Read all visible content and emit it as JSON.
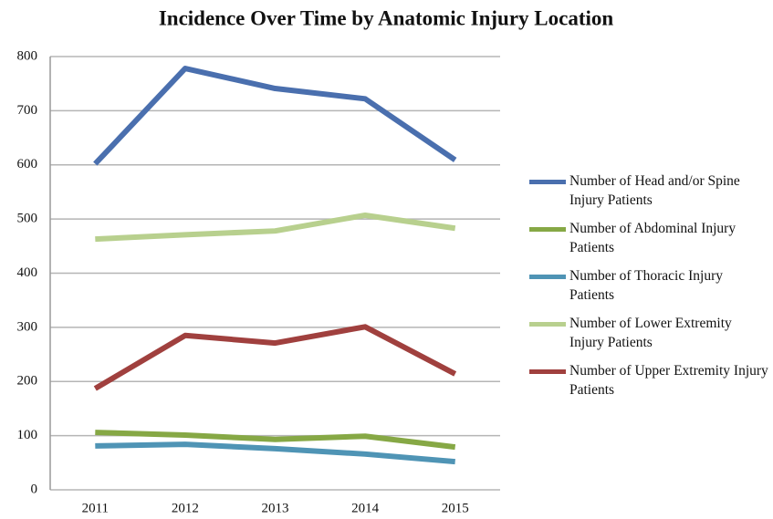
{
  "chart_data": {
    "type": "line",
    "title": "Incidence Over Time by Anatomic Injury Location",
    "categories": [
      "2011",
      "2012",
      "2013",
      "2014",
      "2015"
    ],
    "series": [
      {
        "name": "Number of Head and/or Spine Injury Patients",
        "color": "#4a6fae",
        "values": [
          602,
          778,
          741,
          722,
          609
        ]
      },
      {
        "name": "Number of Abdominal Injury Patients",
        "color": "#86a845",
        "values": [
          106,
          101,
          93,
          99,
          79
        ]
      },
      {
        "name": "Number of Thoracic Injury Patients",
        "color": "#4f94b5",
        "values": [
          81,
          84,
          76,
          66,
          52
        ]
      },
      {
        "name": "Number of Lower Extremity Injury Patients",
        "color": "#b8d08e",
        "values": [
          463,
          471,
          478,
          507,
          483
        ]
      },
      {
        "name": "Number of Upper Extremity Injury Patients",
        "color": "#a0403e",
        "values": [
          187,
          285,
          271,
          301,
          214
        ]
      }
    ],
    "ylim": [
      0,
      800
    ],
    "yticks": [
      0,
      100,
      200,
      300,
      400,
      500,
      600,
      700,
      800
    ],
    "grid": true,
    "legend": "right"
  }
}
